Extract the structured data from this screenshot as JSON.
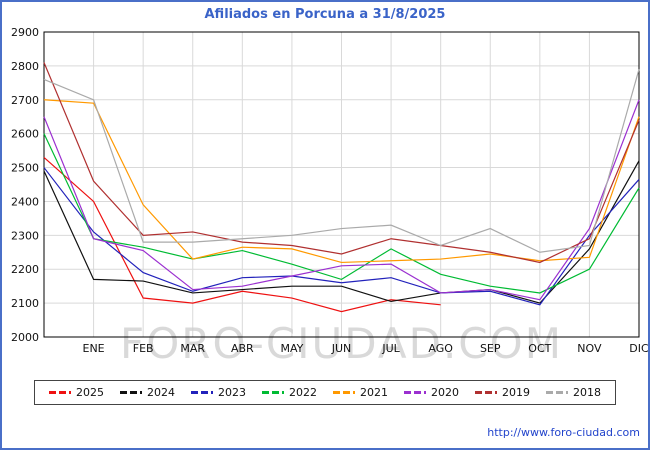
{
  "title": "Afiliados en Porcuna a 31/8/2025",
  "watermark": "FORO-CIUDAD.COM",
  "footer_url": "http://www.foro-ciudad.com",
  "chart_data": {
    "type": "line",
    "title": "Afiliados en Porcuna a 31/8/2025",
    "categories": [
      "ENE",
      "FEB",
      "MAR",
      "ABR",
      "MAY",
      "JUN",
      "JUL",
      "AGO",
      "SEP",
      "OCT",
      "NOV",
      "DIC"
    ],
    "ylim": [
      2000,
      2900
    ],
    "ytick_step": 100,
    "grid": true,
    "legend_position": "bottom",
    "layout_note": "first value of each series sits on the y-axis, following values on the monthly gridlines",
    "series": [
      {
        "name": "2025",
        "color": "#ee1111",
        "values": [
          2530,
          2400,
          2115,
          2100,
          2135,
          2115,
          2075,
          2110,
          2095
        ]
      },
      {
        "name": "2024",
        "color": "#111111",
        "values": [
          2490,
          2170,
          2165,
          2130,
          2140,
          2150,
          2150,
          2105,
          2130,
          2140,
          2100,
          2260,
          2520
        ]
      },
      {
        "name": "2023",
        "color": "#2222bb",
        "values": [
          2500,
          2310,
          2190,
          2135,
          2175,
          2180,
          2160,
          2175,
          2130,
          2135,
          2095,
          2300,
          2465
        ]
      },
      {
        "name": "2022",
        "color": "#00bb33",
        "values": [
          2600,
          2290,
          2265,
          2230,
          2255,
          2215,
          2170,
          2260,
          2185,
          2150,
          2130,
          2200,
          2440
        ]
      },
      {
        "name": "2021",
        "color": "#ff9900",
        "values": [
          2700,
          2690,
          2390,
          2230,
          2265,
          2260,
          2220,
          2225,
          2230,
          2245,
          2225,
          2235,
          2650
        ]
      },
      {
        "name": "2020",
        "color": "#9b30d0",
        "values": [
          2650,
          2290,
          2255,
          2140,
          2150,
          2180,
          2210,
          2215,
          2130,
          2140,
          2110,
          2320,
          2700
        ]
      },
      {
        "name": "2019",
        "color": "#b03030",
        "values": [
          2810,
          2460,
          2300,
          2310,
          2280,
          2270,
          2245,
          2290,
          2270,
          2250,
          2220,
          2290,
          2640
        ]
      },
      {
        "name": "2018",
        "color": "#aaaaaa",
        "values": [
          2760,
          2700,
          2280,
          2280,
          2290,
          2300,
          2320,
          2330,
          2270,
          2320,
          2250,
          2270,
          2790
        ]
      }
    ]
  }
}
